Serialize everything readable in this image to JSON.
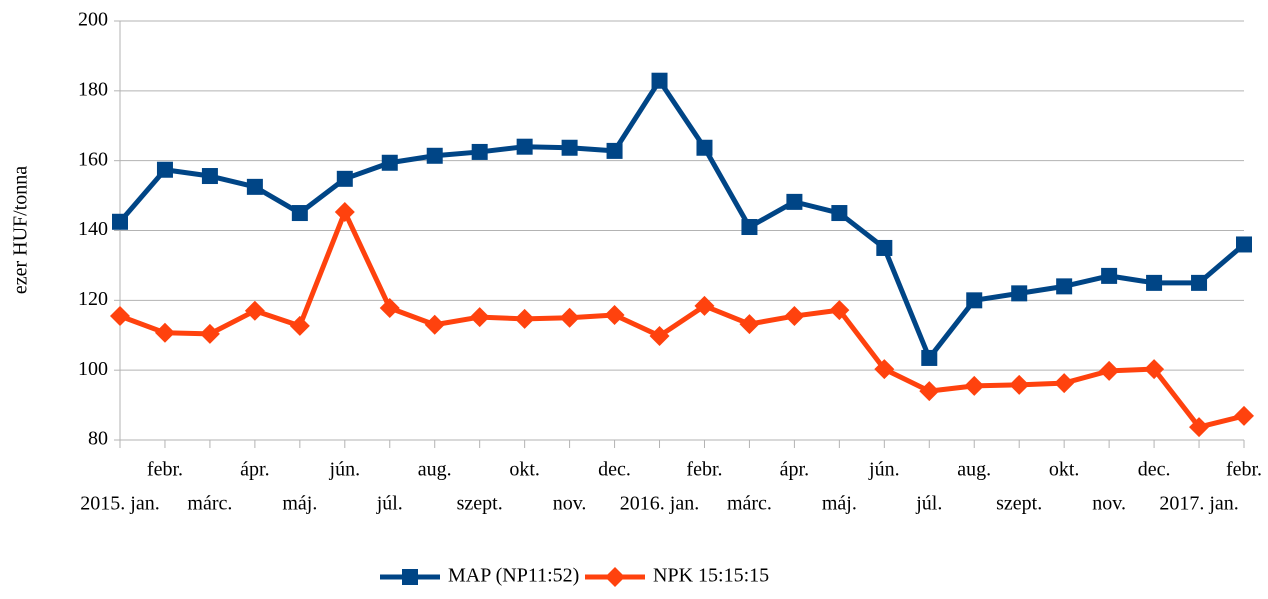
{
  "chart_data": {
    "type": "line",
    "ylabel": "ezer HUF/tonna",
    "categories": [
      "2015. jan.",
      "febr.",
      "márc.",
      "ápr.",
      "máj.",
      "jún.",
      "júl.",
      "aug.",
      "szept.",
      "okt.",
      "nov.",
      "dec.",
      "2016. jan.",
      "febr.",
      "márc.",
      "ápr.",
      "máj.",
      "jún.",
      "júl.",
      "aug.",
      "szept.",
      "okt.",
      "nov.",
      "dec.",
      "2017. jan.",
      "febr."
    ],
    "series": [
      {
        "name": "MAP (NP11:52)",
        "color": "#004586",
        "marker": "square",
        "values": [
          142.5,
          157.4,
          155.6,
          152.5,
          145,
          154.8,
          159.4,
          161.4,
          162.5,
          164,
          163.7,
          162.8,
          182.9,
          163.7,
          141,
          148.2,
          145,
          135,
          103.5,
          120,
          122,
          124,
          127,
          125,
          125,
          136
        ]
      },
      {
        "name": "NPK 15:15:15",
        "color": "#ff420e",
        "marker": "diamond",
        "values": [
          115.5,
          110.7,
          110.4,
          117,
          112.7,
          145.3,
          117.8,
          113,
          115.2,
          114.7,
          115,
          115.8,
          109.8,
          118.4,
          113.2,
          115.5,
          117.2,
          100.3,
          94,
          95.5,
          95.8,
          96.3,
          99.8,
          100.3,
          83.7,
          86.9
        ]
      }
    ],
    "ylim": [
      80,
      200
    ],
    "yticks": [
      80,
      100,
      120,
      140,
      160,
      180,
      200
    ],
    "grid": true,
    "legend": "bottom"
  }
}
